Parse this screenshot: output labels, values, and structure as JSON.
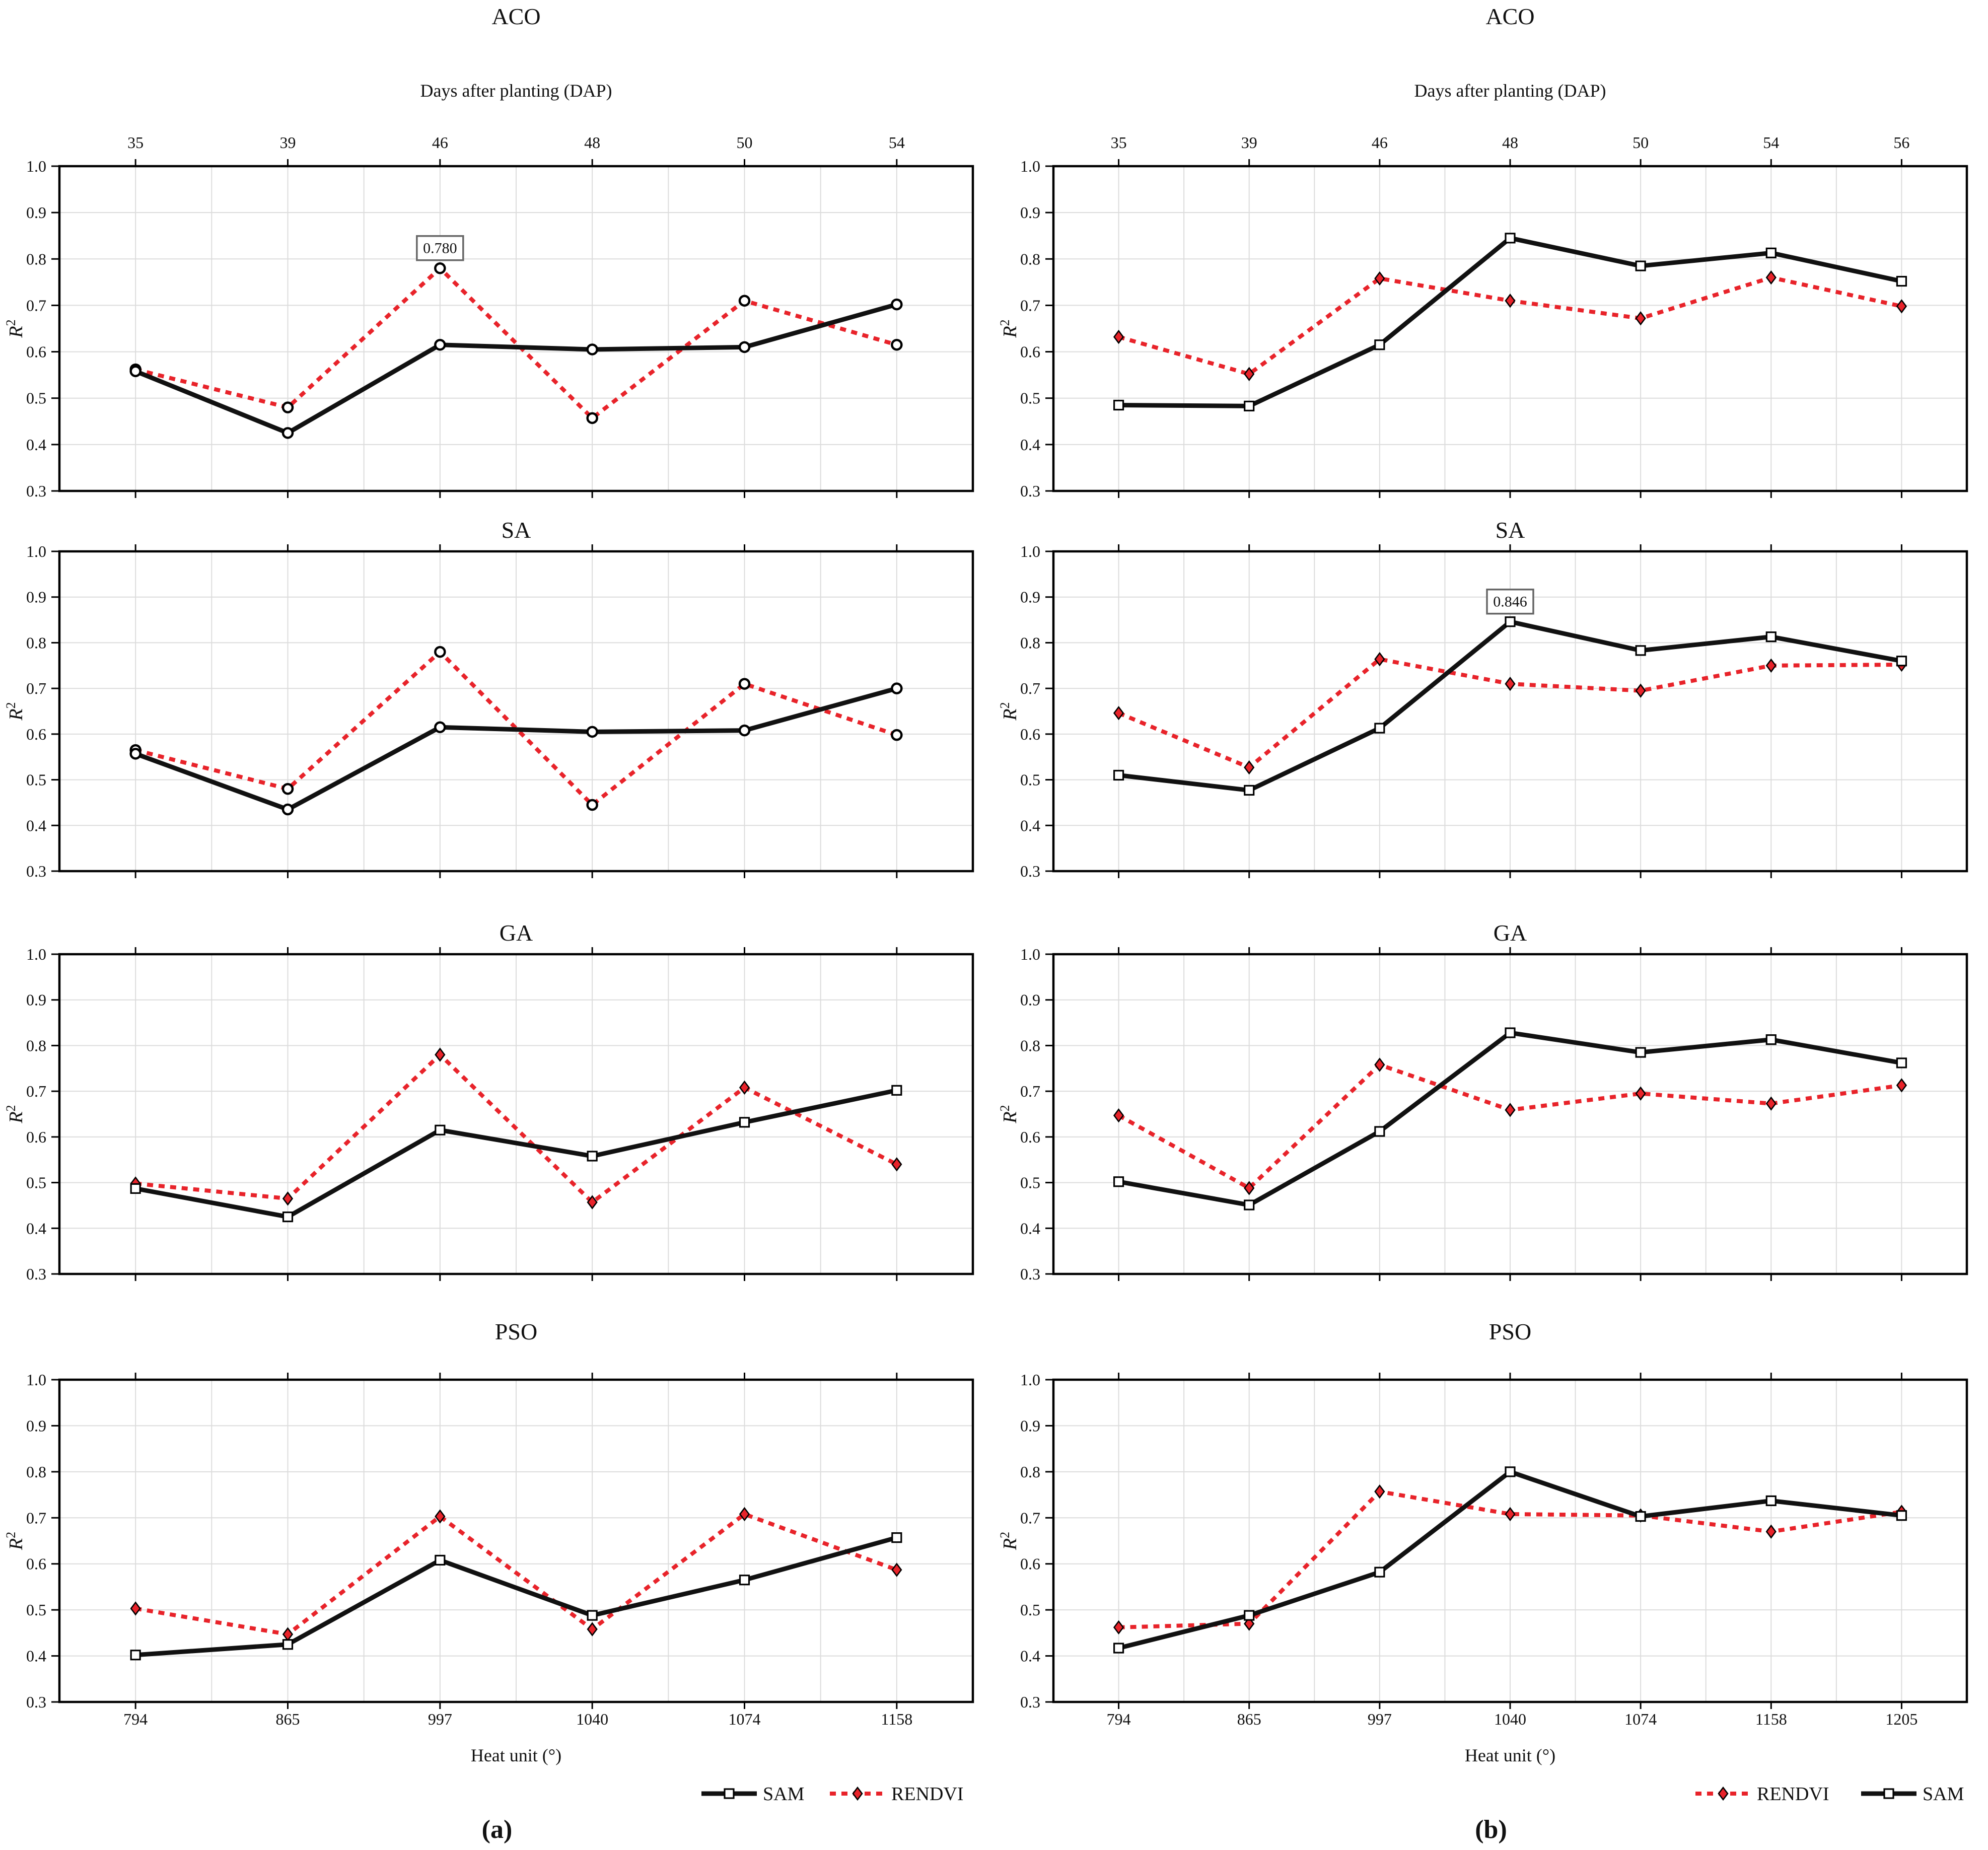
{
  "figure": {
    "top_axis_title": "Days after planting (DAP)",
    "bottom_axis_title": "Heat unit (°)",
    "ylabel": {
      "base": "R",
      "sup": "2"
    },
    "ylim": [
      0.3,
      1.0
    ],
    "ytick_labels": [
      "1.0",
      "0.9",
      "0.8",
      "0.7",
      "0.6",
      "0.5",
      "0.4",
      "0.3"
    ],
    "grid": "on",
    "legend_labels": {
      "sam": "SAM",
      "rendvi": "RENDVI"
    },
    "colors": {
      "sam_line": "#111111",
      "rendvi_line": "#e8232a",
      "gridline": "#dcdcdc",
      "plot_border": "#000000",
      "annotation_border": "#666666",
      "background": "#ffffff"
    }
  },
  "columns": {
    "a": {
      "caption": "(a)",
      "dap_labels": [
        "35",
        "39",
        "46",
        "48",
        "50",
        "54"
      ],
      "heat_labels": [
        "794",
        "865",
        "997",
        "1040",
        "1074",
        "1158"
      ],
      "legend_order": [
        "SAM",
        "RENDVI"
      ]
    },
    "b": {
      "caption": "(b)",
      "dap_labels": [
        "35",
        "39",
        "46",
        "48",
        "50",
        "54",
        "56"
      ],
      "heat_labels": [
        "794",
        "865",
        "997",
        "1040",
        "1074",
        "1158",
        "1205"
      ],
      "legend_order": [
        "RENDVI",
        "SAM"
      ]
    }
  },
  "chart_data": [
    {
      "id": "aco-a",
      "type": "line",
      "title": "ACO",
      "column": "a",
      "row": 1,
      "x_dap": [
        35,
        39,
        46,
        48,
        50,
        54
      ],
      "x_heat": [
        794,
        865,
        997,
        1040,
        1074,
        1158
      ],
      "xlabel": "Heat unit (°)",
      "ylabel": "R2",
      "ylim": [
        0.3,
        1.0
      ],
      "series": [
        {
          "name": "SAM",
          "marker": "circle",
          "line": "solid",
          "values": [
            0.558,
            0.425,
            0.615,
            0.605,
            0.61,
            0.702
          ]
        },
        {
          "name": "RENDVI",
          "marker": "circle",
          "line": "dotted",
          "values": [
            0.562,
            0.48,
            0.78,
            0.457,
            0.71,
            0.615
          ]
        }
      ],
      "annotation": {
        "series": "RENDVI",
        "index": 2,
        "label": "0.780"
      }
    },
    {
      "id": "aco-b",
      "type": "line",
      "title": "ACO",
      "column": "b",
      "row": 1,
      "x_dap": [
        35,
        39,
        46,
        48,
        50,
        54,
        56
      ],
      "x_heat": [
        794,
        865,
        997,
        1040,
        1074,
        1158,
        1205
      ],
      "xlabel": "Heat unit (°)",
      "ylabel": "R2",
      "ylim": [
        0.3,
        1.0
      ],
      "series": [
        {
          "name": "SAM",
          "marker": "square",
          "line": "solid",
          "values": [
            0.485,
            0.483,
            0.615,
            0.845,
            0.785,
            0.813,
            0.752
          ]
        },
        {
          "name": "RENDVI",
          "marker": "diamond",
          "line": "dotted",
          "values": [
            0.632,
            0.552,
            0.758,
            0.71,
            0.672,
            0.76,
            0.698
          ]
        }
      ],
      "annotation": null
    },
    {
      "id": "sa-a",
      "type": "line",
      "title": "SA",
      "column": "a",
      "row": 2,
      "x_dap": [
        35,
        39,
        46,
        48,
        50,
        54
      ],
      "x_heat": [
        794,
        865,
        997,
        1040,
        1074,
        1158
      ],
      "xlabel": "Heat unit (°)",
      "ylabel": "R2",
      "ylim": [
        0.3,
        1.0
      ],
      "series": [
        {
          "name": "SAM",
          "marker": "circle",
          "line": "solid",
          "values": [
            0.557,
            0.435,
            0.615,
            0.605,
            0.608,
            0.7
          ]
        },
        {
          "name": "RENDVI",
          "marker": "circle",
          "line": "dotted",
          "values": [
            0.565,
            0.48,
            0.78,
            0.445,
            0.71,
            0.598
          ]
        }
      ],
      "annotation": null
    },
    {
      "id": "sa-b",
      "type": "line",
      "title": "SA",
      "column": "b",
      "row": 2,
      "x_dap": [
        35,
        39,
        46,
        48,
        50,
        54,
        56
      ],
      "x_heat": [
        794,
        865,
        997,
        1040,
        1074,
        1158,
        1205
      ],
      "xlabel": "Heat unit (°)",
      "ylabel": "R2",
      "ylim": [
        0.3,
        1.0
      ],
      "series": [
        {
          "name": "SAM",
          "marker": "square",
          "line": "solid",
          "values": [
            0.51,
            0.477,
            0.613,
            0.846,
            0.783,
            0.813,
            0.76
          ]
        },
        {
          "name": "RENDVI",
          "marker": "diamond",
          "line": "dotted",
          "values": [
            0.646,
            0.527,
            0.764,
            0.71,
            0.695,
            0.75,
            0.752
          ]
        }
      ],
      "annotation": {
        "series": "SAM",
        "index": 3,
        "label": "0.846"
      }
    },
    {
      "id": "ga-a",
      "type": "line",
      "title": "GA",
      "column": "a",
      "row": 3,
      "x_dap": [
        35,
        39,
        46,
        48,
        50,
        54
      ],
      "x_heat": [
        794,
        865,
        997,
        1040,
        1074,
        1158
      ],
      "xlabel": "Heat unit (°)",
      "ylabel": "R2",
      "ylim": [
        0.3,
        1.0
      ],
      "series": [
        {
          "name": "SAM",
          "marker": "square",
          "line": "solid",
          "values": [
            0.487,
            0.425,
            0.615,
            0.558,
            0.632,
            0.702
          ]
        },
        {
          "name": "RENDVI",
          "marker": "diamond",
          "line": "dotted",
          "values": [
            0.498,
            0.465,
            0.78,
            0.457,
            0.708,
            0.54
          ]
        }
      ],
      "annotation": null
    },
    {
      "id": "ga-b",
      "type": "line",
      "title": "GA",
      "column": "b",
      "row": 3,
      "x_dap": [
        35,
        39,
        46,
        48,
        50,
        54,
        56
      ],
      "x_heat": [
        794,
        865,
        997,
        1040,
        1074,
        1158,
        1205
      ],
      "xlabel": "Heat unit (°)",
      "ylabel": "R2",
      "ylim": [
        0.3,
        1.0
      ],
      "series": [
        {
          "name": "SAM",
          "marker": "square",
          "line": "solid",
          "values": [
            0.502,
            0.451,
            0.612,
            0.828,
            0.785,
            0.813,
            0.762
          ]
        },
        {
          "name": "RENDVI",
          "marker": "diamond",
          "line": "dotted",
          "values": [
            0.647,
            0.488,
            0.758,
            0.659,
            0.695,
            0.673,
            0.713
          ]
        }
      ],
      "annotation": null
    },
    {
      "id": "pso-a",
      "type": "line",
      "title": "PSO",
      "column": "a",
      "row": 4,
      "x_dap": [
        35,
        39,
        46,
        48,
        50,
        54
      ],
      "x_heat": [
        794,
        865,
        997,
        1040,
        1074,
        1158
      ],
      "xlabel": "Heat unit (°)",
      "ylabel": "R2",
      "ylim": [
        0.3,
        1.0
      ],
      "series": [
        {
          "name": "SAM",
          "marker": "square",
          "line": "solid",
          "values": [
            0.402,
            0.425,
            0.608,
            0.488,
            0.565,
            0.657
          ]
        },
        {
          "name": "RENDVI",
          "marker": "diamond",
          "line": "dotted",
          "values": [
            0.503,
            0.447,
            0.703,
            0.458,
            0.708,
            0.587
          ]
        }
      ],
      "annotation": null
    },
    {
      "id": "pso-b",
      "type": "line",
      "title": "PSO",
      "column": "b",
      "row": 4,
      "x_dap": [
        35,
        39,
        46,
        48,
        50,
        54,
        56
      ],
      "x_heat": [
        794,
        865,
        997,
        1040,
        1074,
        1158,
        1205
      ],
      "xlabel": "Heat unit (°)",
      "ylabel": "R2",
      "ylim": [
        0.3,
        1.0
      ],
      "series": [
        {
          "name": "SAM",
          "marker": "square",
          "line": "solid",
          "values": [
            0.417,
            0.488,
            0.582,
            0.8,
            0.703,
            0.737,
            0.705
          ]
        },
        {
          "name": "RENDVI",
          "marker": "diamond",
          "line": "dotted",
          "values": [
            0.462,
            0.47,
            0.757,
            0.708,
            0.705,
            0.67,
            0.713
          ]
        }
      ],
      "annotation": null
    }
  ]
}
